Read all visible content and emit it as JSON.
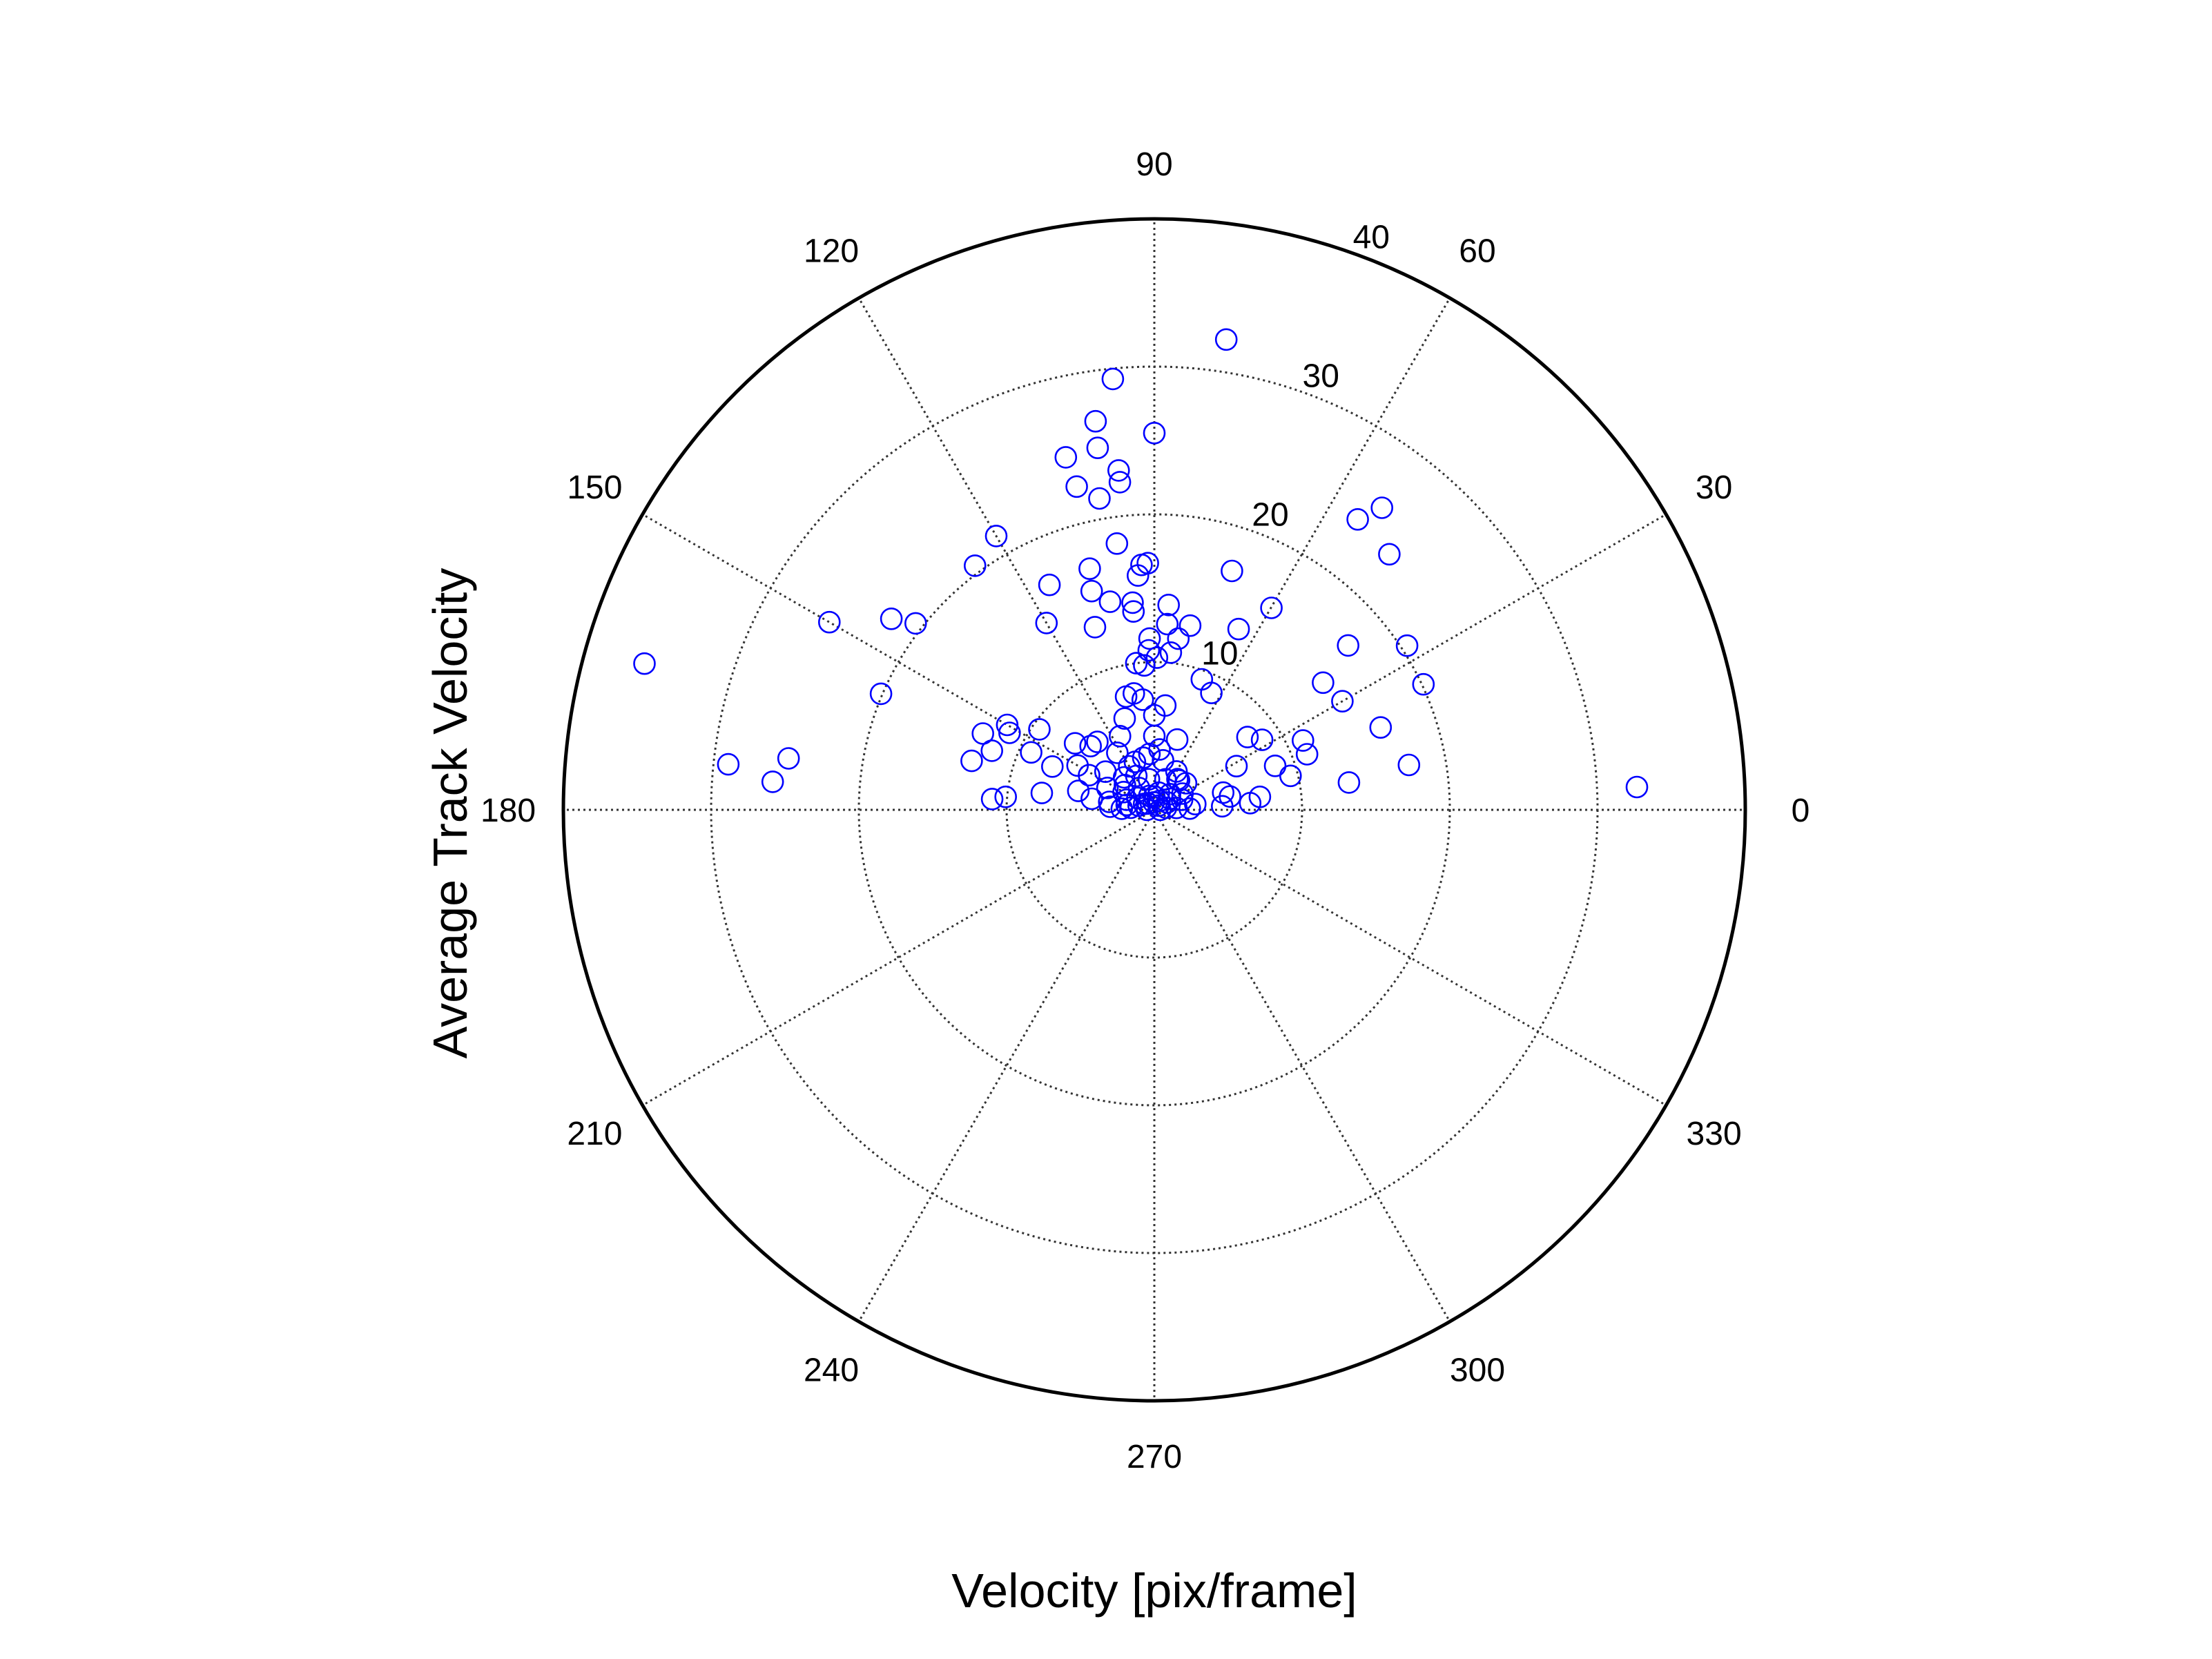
{
  "chart_data": {
    "type": "scatter",
    "coordinate_system": "polar",
    "title": "",
    "xlabel": "Velocity [pix/frame]",
    "ylabel": "Average Track Velocity",
    "r_lim": [
      0,
      40
    ],
    "r_ticks": [
      10,
      20,
      30,
      40
    ],
    "r_tick_labels": [
      "10",
      "20",
      "30",
      "40"
    ],
    "theta_ticks": [
      0,
      30,
      60,
      90,
      120,
      150,
      180,
      210,
      240,
      270,
      300,
      330
    ],
    "theta_tick_labels": [
      "0",
      "30",
      "60",
      "90",
      "120",
      "150",
      "180",
      "210",
      "240",
      "270",
      "300",
      "330"
    ],
    "theta_unit": "degrees",
    "grid": true,
    "marker": "open-circle",
    "marker_color": "#0000ff",
    "series": [
      {
        "points": [
          [
            81.3,
            32.2
          ],
          [
            95.5,
            29.3
          ],
          [
            90.0,
            25.5
          ],
          [
            98.6,
            26.6
          ],
          [
            98.9,
            24.8
          ],
          [
            96.0,
            23.1
          ],
          [
            104.1,
            24.6
          ],
          [
            103.5,
            22.5
          ],
          [
            96.0,
            22.3
          ],
          [
            100.0,
            21.4
          ],
          [
            120.0,
            21.4
          ],
          [
            126.3,
            20.5
          ],
          [
            150.0,
            25.4
          ],
          [
            144.0,
            22.0
          ],
          [
            142.0,
            20.5
          ],
          [
            157.0,
            20.1
          ],
          [
            164.0,
            35.9
          ],
          [
            173.9,
            29.0
          ],
          [
            172.0,
            25.0
          ],
          [
            175.8,
            25.9
          ],
          [
            165.0,
            12.8
          ],
          [
            150.0,
            11.5
          ],
          [
            152.0,
            11.1
          ],
          [
            156.0,
            12.7
          ],
          [
            160.0,
            11.7
          ],
          [
            171.5,
            7.7
          ],
          [
            176.2,
            11.0
          ],
          [
            91.5,
            16.7
          ],
          [
            93.0,
            16.6
          ],
          [
            94.0,
            15.9
          ],
          [
            98.0,
            18.2
          ],
          [
            105.0,
            16.9
          ],
          [
            96.0,
            13.5
          ],
          [
            115.0,
            16.8
          ],
          [
            120.0,
            14.6
          ],
          [
            106.0,
            15.4
          ],
          [
            108.0,
            13.0
          ],
          [
            102.0,
            14.4
          ],
          [
            96.0,
            14.1
          ],
          [
            91.6,
            11.6
          ],
          [
            92.0,
            10.8
          ],
          [
            86.0,
            13.9
          ],
          [
            86.0,
            12.6
          ],
          [
            79.0,
            12.7
          ],
          [
            72.0,
            17.0
          ],
          [
            59.9,
            15.8
          ],
          [
            65.0,
            13.5
          ],
          [
            47.4,
            23.5
          ],
          [
            40.3,
            17.2
          ],
          [
            53.0,
            25.6
          ],
          [
            55.0,
            24.0
          ],
          [
            33.0,
            20.4
          ],
          [
            25.0,
            20.1
          ],
          [
            37.0,
            14.3
          ],
          [
            30.0,
            14.7
          ],
          [
            20.0,
            16.3
          ],
          [
            10.0,
            17.5
          ],
          [
            2.7,
            32.7
          ],
          [
            89.0,
            10.3
          ],
          [
            82.0,
            11.7
          ],
          [
            84.0,
            10.7
          ],
          [
            70.0,
            9.4
          ],
          [
            64.0,
            8.8
          ],
          [
            94.0,
            9.8
          ],
          [
            97.0,
            10.0
          ],
          [
            100.0,
            8.0
          ],
          [
            104.0,
            7.9
          ],
          [
            108.0,
            6.5
          ],
          [
            96.0,
            7.5
          ],
          [
            90.0,
            6.4
          ],
          [
            84.0,
            7.1
          ],
          [
            130.0,
            6.0
          ],
          [
            140.0,
            7.0
          ],
          [
            135.0,
            6.1
          ],
          [
            150.0,
            6.0
          ],
          [
            157.0,
            7.5
          ],
          [
            175.0,
            10.1
          ],
          [
            155.0,
            9.2
          ],
          [
            145.0,
            9.5
          ],
          [
            166.0,
            5.3
          ],
          [
            152.0,
            5.0
          ],
          [
            170.0,
            3.1
          ],
          [
            20.0,
            8.7
          ],
          [
            33.0,
            8.7
          ],
          [
            38.0,
            8.0
          ],
          [
            28.0,
            6.3
          ],
          [
            25.0,
            11.1
          ],
          [
            20.0,
            11.0
          ],
          [
            8.0,
            13.3
          ],
          [
            14.0,
            9.5
          ],
          [
            7.0,
            7.2
          ],
          [
            4.0,
            6.5
          ],
          [
            10.0,
            5.2
          ],
          [
            14.0,
            4.8
          ],
          [
            3.0,
            4.6
          ],
          [
            85.0,
            4.1
          ],
          [
            95.0,
            3.8
          ],
          [
            102.0,
            3.6
          ],
          [
            112.0,
            3.5
          ],
          [
            120.0,
            3.4
          ],
          [
            133.0,
            3.0
          ],
          [
            140.0,
            2.6
          ],
          [
            150.0,
            2.4
          ],
          [
            160.0,
            2.0
          ],
          [
            170.0,
            1.9
          ],
          [
            60.0,
            3.0
          ],
          [
            50.0,
            2.6
          ],
          [
            40.0,
            2.8
          ],
          [
            30.0,
            2.2
          ],
          [
            20.0,
            2.0
          ],
          [
            70.0,
            2.2
          ],
          [
            100.0,
            2.1
          ],
          [
            125.0,
            1.8
          ],
          [
            145.0,
            1.4
          ],
          [
            165.0,
            1.1
          ],
          [
            5.0,
            1.5
          ],
          [
            35.0,
            1.3
          ],
          [
            75.0,
            1.2
          ],
          [
            110.0,
            1.0
          ],
          [
            10.0,
            0.8
          ],
          [
            135.0,
            0.6
          ],
          [
            60.0,
            0.7
          ],
          [
            95.0,
            0.5
          ],
          [
            180.0,
            0.5
          ],
          [
            0.0,
            0.4
          ],
          [
            155.0,
            3.5
          ],
          [
            115.0,
            5.5
          ],
          [
            90.0,
            5.0
          ],
          [
            72.0,
            5.0
          ],
          [
            80.0,
            3.4
          ],
          [
            123.0,
            4.6
          ],
          [
            142.0,
            4.2
          ],
          [
            170.0,
            4.3
          ],
          [
            176.0,
            3.0
          ],
          [
            178.0,
            2.2
          ],
          [
            8.0,
            2.8
          ],
          [
            2.0,
            2.4
          ],
          [
            175.0,
            1.6
          ],
          [
            30.0,
            1.0
          ],
          [
            90.0,
            0.9
          ],
          [
            150.0,
            0.8
          ],
          [
            45.0,
            0.4
          ],
          [
            45.0,
            1.5
          ],
          [
            53.0,
            2.6
          ],
          [
            118.0,
            2.6
          ]
        ]
      }
    ]
  }
}
